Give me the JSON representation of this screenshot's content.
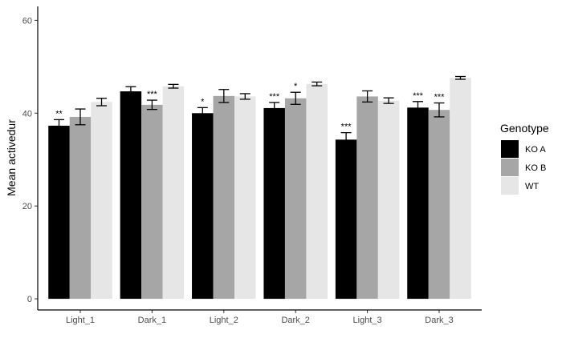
{
  "chart_data": {
    "type": "bar",
    "categories": [
      "Light_1",
      "Dark_1",
      "Light_2",
      "Dark_2",
      "Light_3",
      "Dark_3"
    ],
    "series": [
      {
        "name": "KO A",
        "color": "#000000",
        "values": [
          37.3,
          44.7,
          40.0,
          41.1,
          34.3,
          41.2
        ],
        "errors": [
          1.3,
          1.0,
          1.2,
          1.2,
          1.5,
          1.3
        ],
        "significance": [
          "**",
          "",
          "*",
          "***",
          "***",
          "***"
        ]
      },
      {
        "name": "KO B",
        "color": "#a6a6a6",
        "values": [
          39.2,
          41.8,
          43.7,
          43.2,
          43.6,
          40.7
        ],
        "errors": [
          1.7,
          1.0,
          1.4,
          1.3,
          1.2,
          1.5
        ],
        "significance": [
          "",
          "***",
          "",
          "*",
          "",
          "***"
        ]
      },
      {
        "name": "WT",
        "color": "#e6e6e6",
        "values": [
          42.4,
          45.8,
          43.6,
          46.3,
          42.7,
          47.6
        ],
        "errors": [
          0.8,
          0.4,
          0.6,
          0.4,
          0.6,
          0.3
        ],
        "significance": [
          "",
          "",
          "",
          "",
          "",
          ""
        ]
      }
    ],
    "title": "",
    "xlabel": "",
    "ylabel": "Mean activedur",
    "yticks": [
      0,
      20,
      40,
      60
    ],
    "ylim": [
      -2.4,
      63
    ],
    "grid": false,
    "legend": {
      "title": "Genotype",
      "position": "right"
    }
  }
}
